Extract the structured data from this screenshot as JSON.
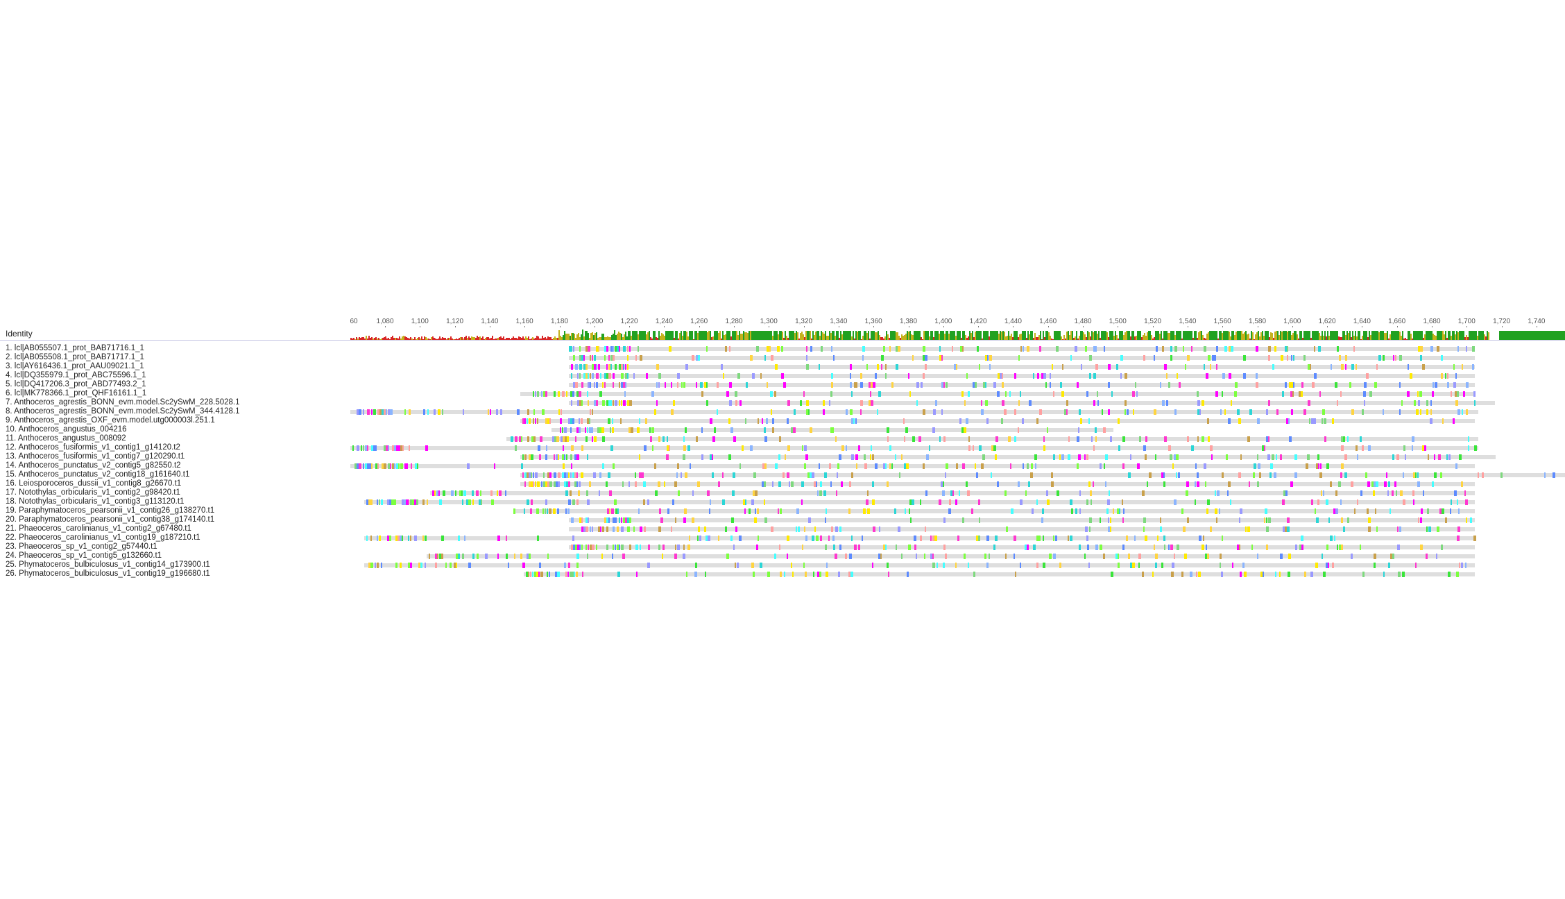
{
  "identity_label": "Identity",
  "ruler": {
    "first_label": "60",
    "labels": [
      "1,080",
      "1,100",
      "1,120",
      "1,140",
      "1,160",
      "1,180",
      "1,200",
      "1,220",
      "1,240",
      "1,260",
      "1,280",
      "1,300",
      "1,320",
      "1,340",
      "1,360",
      "1,380",
      "1,400",
      "1,420",
      "1,440",
      "1,460",
      "1,480",
      "1,500",
      "1,520",
      "1,540",
      "1,560",
      "1,580",
      "1,600",
      "1,620",
      "1,640",
      "1,660",
      "1,680",
      "1,700",
      "1,720",
      "1,740"
    ]
  },
  "colors": {
    "gap": "#dedede",
    "identity_high": "#21a121",
    "identity_mid": "#c4b21d",
    "identity_low": "#d82626",
    "residues": [
      "#f0f",
      "#ff36d0",
      "#7cff3f",
      "#39e539",
      "#2bd6d6",
      "#4ff",
      "#8ab4ff",
      "#5c8aff",
      "#ffea00",
      "#ffd440",
      "#ffa0a0",
      "#c9a04a",
      "#9999ff",
      "#7ed97e"
    ]
  },
  "sequences": [
    "1. lcl|AB055507.1_prot_BAB71716.1_1",
    "2. lcl|AB055508.1_prot_BAB71717.1_1",
    "3. lcl|AY616436.1_prot_AAU09021.1_1",
    "4. lcl|DQ355979.1_prot_ABC75596.1_1",
    "5. lcl|DQ417206.3_prot_ABD77493.2_1",
    "6. lcl|MK778366.1_prot_QHF16161.1_1",
    "7. Anthoceros_agrestis_BONN_evm.model.Sc2ySwM_228.5028.1",
    "8. Anthoceros_agrestis_BONN_evm.model.Sc2ySwM_344.4128.1",
    "9. Anthoceros_agrestis_OXF_evm.model.utg000003l.251.1",
    "10. Anthoceros_angustus_004216",
    "11. Anthoceros_angustus_008092",
    "12. Anthoceros_fusiformis_v1_contig1_g14120.t2",
    "13. Anthoceros_fusiformis_v1_contig7_g120290.t1",
    "14. Anthoceros_punctatus_v2_contig5_g82550.t2",
    "15. Anthoceros_punctatus_v2_contig18_g161640.t1",
    "16. Leiosporoceros_dussii_v1_contig8_g26670.t1",
    "17. Notothylas_orbicularis_v1_contig2_g98420.t1",
    "18. Notothylas_orbicularis_v1_contig3_g113120.t1",
    "19. Paraphymatoceros_pearsonii_v1_contig26_g138270.t1",
    "20. Paraphymatoceros_pearsonii_v1_contig38_g174140.t1",
    "21. Phaeoceros_carolinianus_v1_contig2_g67480.t1",
    "22. Phaeoceros_carolinianus_v1_contig19_g187210.t1",
    "23. Phaeoceros_sp_v1_contig2_g57440.t1",
    "24. Phaeoceros_sp_v1_contig5_g132660.t1",
    "25. Phymatoceros_bulbiculosus_v1_contig14_g173900.t1",
    "26. Phymatoceros_bulbiculosus_v1_contig19_g196680.t1"
  ]
}
